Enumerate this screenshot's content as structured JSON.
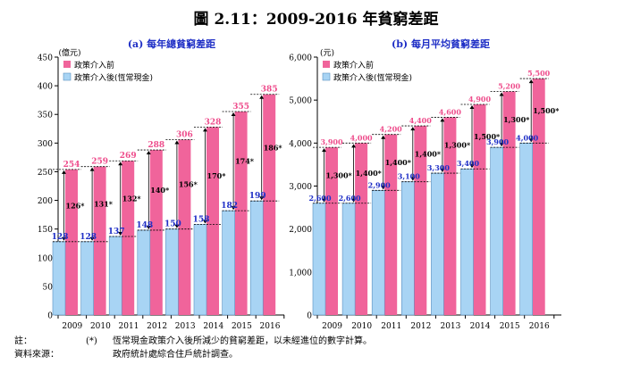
{
  "figure_title": "圖 2.11：2009-2016 年貧窮差距",
  "chart_data": [
    {
      "type": "bar",
      "title": "(a) 每年總貧窮差距",
      "ylabel": "(億元)",
      "ylim": [
        0,
        450
      ],
      "yticks": [
        0,
        50,
        100,
        150,
        200,
        250,
        300,
        350,
        400,
        450
      ],
      "categories": [
        "2009",
        "2010",
        "2011",
        "2012",
        "2013",
        "2014",
        "2015",
        "2016"
      ],
      "legend": "top-left",
      "series": [
        {
          "name": "政策介入前",
          "color": "#f0649b",
          "label_color": "#ee4d8c",
          "values": [
            254,
            259,
            269,
            288,
            306,
            328,
            355,
            385
          ]
        },
        {
          "name": "政策介入後(恆常現金)",
          "color": "#a8d4f4",
          "label_color": "#1f2fc6",
          "values": [
            128,
            128,
            137,
            148,
            150,
            158,
            182,
            199
          ]
        }
      ],
      "gap_labels": [
        "126*",
        "131*",
        "132*",
        "140*",
        "156*",
        "170*",
        "174*",
        "186*"
      ]
    },
    {
      "type": "bar",
      "title": "(b) 每月平均貧窮差距",
      "ylabel": "(元)",
      "ylim": [
        0,
        6000
      ],
      "yticks": [
        0,
        1000,
        2000,
        3000,
        4000,
        5000,
        6000
      ],
      "ytick_labels": [
        "0",
        "1,000",
        "2,000",
        "3,000",
        "4,000",
        "5,000",
        "6,000"
      ],
      "categories": [
        "2009",
        "2010",
        "2011",
        "2012",
        "2013",
        "2014",
        "2015",
        "2016"
      ],
      "legend": "top-left",
      "series": [
        {
          "name": "政策介入前",
          "color": "#f0649b",
          "label_color": "#ee4d8c",
          "values": [
            3900,
            4000,
            4200,
            4400,
            4600,
            4900,
            5200,
            5500
          ],
          "labels": [
            "3,900",
            "4,000",
            "4,200",
            "4,400",
            "4,600",
            "4,900",
            "5,200",
            "5,500"
          ]
        },
        {
          "name": "政策介入後(恆常現金)",
          "color": "#a8d4f4",
          "label_color": "#1f2fc6",
          "values": [
            2600,
            2600,
            2900,
            3100,
            3300,
            3400,
            3900,
            4000
          ],
          "labels": [
            "2,600",
            "2,600",
            "2,900",
            "3,100",
            "3,300",
            "3,400",
            "3,900",
            "4,000"
          ]
        }
      ],
      "gap_labels": [
        "1,300*",
        "1,400*",
        "1,400*",
        "1,400*",
        "1,300*",
        "1,500*",
        "1,300*",
        "1,500*"
      ]
    }
  ],
  "notes": {
    "note_label": "註：",
    "note_mark": "(*)",
    "note_text": "恆常現金政策介入後所減少的貧窮差距，以未經進位的數字計算。",
    "source_label": "資料來源：",
    "source_text": "政府統計處綜合住戶統計調查。"
  }
}
